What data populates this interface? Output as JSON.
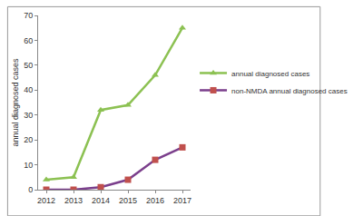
{
  "chart_data": {
    "type": "line",
    "categories": [
      "2012",
      "2013",
      "2014",
      "2015",
      "2016",
      "2017"
    ],
    "series": [
      {
        "name": "annual diagnosed cases",
        "color": "#8cc152",
        "marker": "triangle",
        "values": [
          4,
          5,
          32,
          34,
          46,
          65
        ]
      },
      {
        "name": "non-NMDA annual diagnosed cases",
        "color": "#7b3f8c",
        "marker": "square",
        "values": [
          0,
          0,
          1,
          4,
          12,
          17
        ]
      }
    ],
    "y_label": "annual diagnosed cases",
    "ylim": [
      0,
      70
    ],
    "yticks": [
      0,
      10,
      20,
      30,
      40,
      50,
      60,
      70
    ],
    "grid": false,
    "legend": "right"
  }
}
